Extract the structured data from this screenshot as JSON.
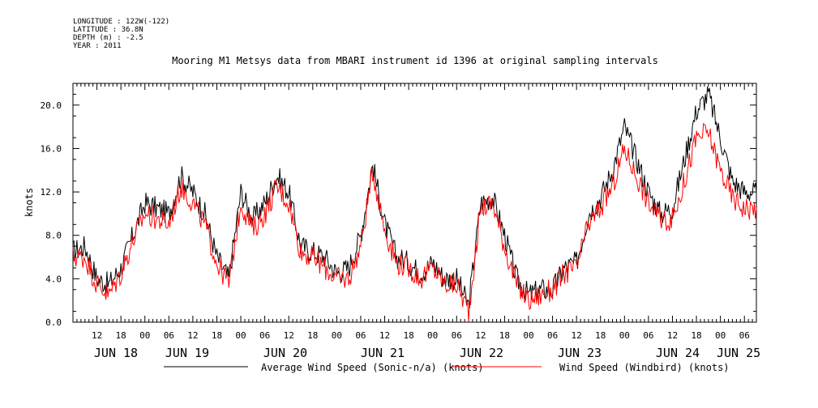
{
  "meta": {
    "longitude": "LONGITUDE : 122W(-122)",
    "latitude": "LATITUDE : 36.8N",
    "depth": "DEPTH (m) : -2.5",
    "year": "YEAR : 2011"
  },
  "chart_data": {
    "type": "line",
    "title": "Mooring M1 Metsys data from MBARI instrument id 1396 at original sampling intervals",
    "ylabel": "knots",
    "xlabel": "",
    "ylim": [
      0,
      22
    ],
    "yticks": [
      "0.0",
      "4.0",
      "8.0",
      "12.0",
      "16.0",
      "20.0"
    ],
    "xlim_hours": [
      0,
      171
    ],
    "hour_tick_labels": [
      "12",
      "18",
      "00",
      "06",
      "12",
      "18",
      "00",
      "06",
      "12",
      "18",
      "00",
      "06",
      "12",
      "18",
      "00",
      "06",
      "12",
      "18",
      "00",
      "06",
      "12",
      "18",
      "00",
      "06",
      "12",
      "18",
      "00",
      "06"
    ],
    "day_labels": [
      "JUN 18",
      "JUN 19",
      "JUN 20",
      "JUN 21",
      "JUN 22",
      "JUN 23",
      "JUN 24",
      "JUN 25"
    ],
    "grid": false,
    "legend_position": "bottom",
    "x_hours_since_jun18_0600": [
      0,
      3,
      6,
      9,
      12,
      15,
      18,
      21,
      24,
      27,
      30,
      33,
      36,
      39,
      42,
      45,
      48,
      51,
      54,
      57,
      60,
      63,
      66,
      69,
      72,
      75,
      78,
      81,
      84,
      87,
      90,
      93,
      96,
      99,
      102,
      105,
      108,
      111,
      114,
      117,
      120,
      123,
      126,
      129,
      132,
      135,
      138,
      141,
      144,
      147,
      150,
      153,
      156,
      159,
      162,
      165,
      168,
      171
    ],
    "series": [
      {
        "name": "Average Wind Speed (Sonic-n/a) (knots)",
        "color": "#000000",
        "values": [
          6.5,
          7.0,
          4.0,
          3.5,
          5.0,
          8.0,
          11.0,
          10.5,
          10.0,
          13.5,
          12.0,
          10.0,
          6.0,
          4.0,
          12.0,
          9.5,
          11.0,
          13.5,
          12.0,
          7.0,
          6.5,
          6.0,
          4.5,
          5.0,
          8.0,
          14.5,
          9.0,
          6.0,
          5.5,
          4.5,
          5.5,
          4.0,
          4.0,
          1.5,
          11.0,
          11.5,
          8.0,
          4.0,
          2.5,
          3.0,
          3.0,
          5.0,
          5.5,
          10.0,
          11.5,
          14.0,
          18.0,
          15.0,
          12.0,
          10.0,
          10.5,
          15.0,
          19.5,
          21.0,
          17.0,
          13.0,
          12.0,
          12.0
        ]
      },
      {
        "name": "Wind Speed (Windbird) (knots)",
        "color": "#ff0000",
        "values": [
          6.0,
          6.0,
          3.5,
          2.5,
          4.5,
          7.5,
          10.0,
          9.5,
          9.0,
          12.5,
          11.0,
          9.0,
          5.5,
          3.5,
          11.0,
          8.5,
          10.0,
          12.5,
          11.0,
          6.5,
          6.0,
          5.0,
          4.0,
          4.0,
          7.0,
          14.0,
          8.5,
          5.5,
          5.0,
          4.0,
          5.0,
          3.5,
          3.5,
          1.0,
          10.5,
          11.0,
          7.0,
          3.5,
          2.0,
          2.5,
          3.0,
          4.5,
          5.0,
          9.0,
          10.5,
          12.5,
          16.0,
          13.5,
          11.0,
          9.5,
          9.5,
          13.0,
          17.0,
          17.5,
          14.0,
          11.5,
          10.5,
          10.5
        ]
      }
    ]
  }
}
